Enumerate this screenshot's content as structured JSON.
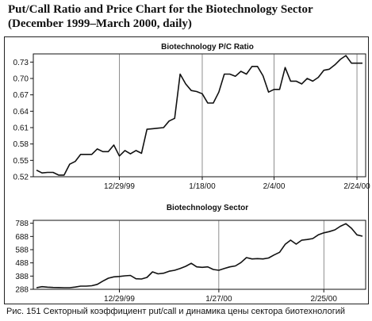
{
  "title_line1": "Put/Call Ratio and Price Chart for the Biotechnology Sector",
  "title_line2": "(December 1999–March 2000, daily)",
  "caption": "Рис. 151 Секторный коэффициент put/call и динамика цены сектора биотехнологий",
  "chart_data": [
    {
      "type": "line",
      "title": "Biotechnology P/C Ratio",
      "xlabel": "",
      "ylabel": "",
      "x_tick_labels": [
        "12/29/99",
        "1/18/00",
        "2/4/00",
        "2/24/00"
      ],
      "x_tick_index": [
        15,
        30,
        43,
        58
      ],
      "y_ticks": [
        "0.52",
        "0.55",
        "0.58",
        "0.61",
        "0.64",
        "0.67",
        "0.70",
        "0.73"
      ],
      "ylim": [
        0.52,
        0.745
      ],
      "grid": "vertical lines at x tick dates",
      "series": [
        {
          "values": [
            0.532,
            0.527,
            0.528,
            0.528,
            0.523,
            0.523,
            0.543,
            0.548,
            0.561,
            0.561,
            0.561,
            0.571,
            0.566,
            0.566,
            0.578,
            0.558,
            0.568,
            0.562,
            0.568,
            0.563,
            0.607,
            0.608,
            0.609,
            0.61,
            0.622,
            0.627,
            0.708,
            0.69,
            0.678,
            0.676,
            0.672,
            0.655,
            0.655,
            0.675,
            0.708,
            0.708,
            0.704,
            0.713,
            0.708,
            0.722,
            0.722,
            0.705,
            0.675,
            0.68,
            0.68,
            0.72,
            0.695,
            0.695,
            0.69,
            0.7,
            0.695,
            0.702,
            0.715,
            0.717,
            0.725,
            0.735,
            0.742,
            0.728,
            0.728,
            0.728
          ]
        }
      ]
    },
    {
      "type": "line",
      "title": "Biotechnology Sector",
      "xlabel": "",
      "ylabel": "",
      "x_tick_labels": [
        "12/29/99",
        "1/27/00",
        "2/25/00"
      ],
      "x_tick_index": [
        15,
        33,
        52
      ],
      "y_ticks": [
        "288",
        "388",
        "488",
        "588",
        "688",
        "788"
      ],
      "ylim": [
        288,
        810
      ],
      "grid": "vertical lines at x tick dates",
      "series": [
        {
          "values": [
            300,
            308,
            304,
            302,
            301,
            300,
            300,
            305,
            312,
            312,
            315,
            325,
            350,
            372,
            382,
            385,
            390,
            393,
            368,
            366,
            378,
            420,
            405,
            410,
            425,
            432,
            445,
            462,
            485,
            458,
            454,
            458,
            438,
            432,
            445,
            458,
            465,
            490,
            528,
            518,
            520,
            518,
            525,
            548,
            568,
            628,
            660,
            630,
            660,
            665,
            672,
            700,
            715,
            725,
            738,
            765,
            785,
            750,
            700,
            690
          ]
        }
      ]
    }
  ]
}
